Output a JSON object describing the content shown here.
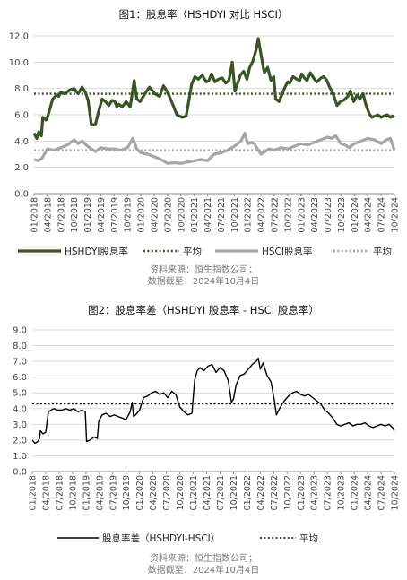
{
  "chart_data": [
    {
      "type": "line",
      "title": "图1：股息率（HSHDYI 对比 HSCI）",
      "ylim": [
        0,
        12
      ],
      "yticks": [
        "0.0",
        "2.0",
        "4.0",
        "6.0",
        "8.0",
        "10.0",
        "12.0"
      ],
      "xticks": [
        "01/2018",
        "04/2018",
        "07/2018",
        "10/2018",
        "01/2019",
        "04/2019",
        "07/2019",
        "10/2019",
        "01/2020",
        "04/2020",
        "07/2020",
        "10/2020",
        "01/2021",
        "04/2021",
        "07/2021",
        "10/2021",
        "01/2022",
        "04/2022",
        "07/2022",
        "10/2022",
        "01/2023",
        "04/2023",
        "07/2023",
        "10/2023",
        "01/2024",
        "04/2024",
        "07/2024",
        "10/2024"
      ],
      "legend": [
        "HSHDYI股息率",
        "平均",
        "HSCI股息率",
        "平均"
      ],
      "series": [
        {
          "name": "HSHDYI股息率",
          "color": "#375623",
          "x": [
            0,
            0.2,
            0.35,
            0.55,
            0.65,
            0.9,
            1.0,
            1.4,
            1.7,
            1.85,
            2.0,
            2.3,
            2.7,
            3.0,
            3.3,
            3.6,
            3.85,
            4.05,
            4.3,
            4.6,
            4.85,
            5.1,
            5.35,
            5.6,
            5.85,
            6.05,
            6.2,
            6.35,
            6.6,
            6.9,
            7.2,
            7.5,
            7.7,
            7.95,
            8.3,
            8.65,
            9.05,
            9.4,
            9.7,
            9.95,
            10.05,
            10.3,
            10.7,
            11.1,
            11.4,
            11.8,
            12.05,
            12.3,
            12.6,
            12.9,
            13.1,
            13.3,
            13.55,
            13.8,
            14.1,
            14.35,
            14.6,
            14.85,
            15.05,
            15.25,
            15.45,
            15.7,
            15.95,
            16.15,
            16.4,
            16.65,
            16.8,
            17.0,
            17.25,
            17.5,
            17.75,
            17.95,
            18.1,
            18.35,
            18.6,
            18.8,
            19.0,
            19.15,
            19.4,
            19.7,
            19.9,
            20.05,
            20.25,
            20.45,
            20.7,
            21.0,
            21.2,
            21.5,
            21.7,
            21.95,
            22.1,
            22.4,
            22.7,
            22.95,
            23.2,
            23.5,
            23.7,
            23.95,
            24.2,
            24.4,
            24.65,
            24.85,
            25.1,
            25.3,
            25.55,
            25.75,
            26.0,
            26.2,
            26.45,
            26.7,
            26.85,
            27.0
          ],
          "y": [
            4.6,
            4.2,
            4.7,
            4.4,
            5.8,
            5.6,
            5.8,
            7.2,
            7.5,
            7.4,
            7.7,
            7.6,
            7.9,
            8.0,
            7.6,
            8.1,
            7.7,
            7.1,
            5.2,
            5.3,
            6.3,
            7.2,
            7.0,
            6.7,
            7.1,
            7.0,
            6.6,
            6.8,
            6.6,
            7.0,
            6.6,
            8.6,
            7.2,
            7.0,
            7.6,
            8.1,
            7.6,
            7.4,
            8.2,
            7.8,
            7.6,
            7.0,
            6.0,
            5.8,
            5.9,
            8.3,
            8.9,
            8.7,
            9.0,
            8.5,
            8.6,
            9.1,
            8.5,
            8.7,
            8.8,
            8.4,
            8.6,
            10.0,
            7.8,
            8.4,
            9.0,
            9.3,
            8.7,
            9.6,
            10.1,
            11.0,
            11.8,
            10.6,
            9.2,
            9.6,
            8.6,
            8.9,
            7.2,
            7.0,
            7.6,
            8.1,
            8.5,
            8.4,
            8.9,
            8.7,
            8.6,
            9.1,
            8.8,
            8.6,
            9.2,
            8.7,
            8.5,
            8.8,
            8.9,
            8.6,
            8.2,
            7.6,
            6.7,
            7.0,
            7.1,
            7.4,
            7.8,
            7.0,
            7.5,
            7.2,
            7.6,
            6.8,
            6.1,
            5.8,
            5.9,
            6.0,
            5.8,
            5.9,
            6.0,
            5.8,
            5.9,
            5.8
          ]
        },
        {
          "name": "平均",
          "color": "#375623",
          "y": 7.6
        },
        {
          "name": "HSCI股息率",
          "color": "#a6a6a6",
          "x": [
            0,
            0.3,
            0.6,
            1.0,
            1.5,
            2.0,
            2.5,
            3.0,
            3.3,
            3.6,
            4.0,
            4.3,
            4.6,
            5.0,
            5.5,
            6.0,
            6.5,
            7.0,
            7.4,
            7.7,
            8.0,
            8.5,
            9.0,
            9.5,
            10.0,
            10.5,
            11.0,
            11.5,
            12.0,
            12.5,
            13.0,
            13.5,
            14.0,
            14.5,
            15.0,
            15.5,
            15.8,
            16.0,
            16.3,
            16.5,
            16.8,
            17.0,
            17.3,
            17.6,
            18.0,
            18.5,
            19.0,
            19.5,
            20.0,
            20.5,
            21.0,
            21.5,
            22.0,
            22.3,
            22.6,
            23.0,
            23.3,
            23.6,
            24.0,
            24.5,
            25.0,
            25.5,
            26.0,
            26.4,
            26.7,
            27.0
          ],
          "y": [
            2.6,
            2.5,
            2.7,
            3.4,
            3.3,
            3.5,
            3.7,
            4.1,
            3.8,
            4.0,
            3.6,
            3.4,
            3.2,
            3.5,
            3.4,
            3.4,
            3.3,
            3.5,
            4.2,
            3.4,
            3.1,
            3.0,
            2.8,
            2.6,
            2.3,
            2.35,
            2.3,
            2.4,
            2.5,
            2.6,
            2.5,
            3.0,
            3.1,
            3.3,
            3.6,
            4.0,
            4.6,
            3.8,
            3.9,
            3.8,
            3.3,
            3.0,
            3.2,
            3.4,
            3.3,
            3.5,
            3.4,
            3.6,
            3.8,
            3.7,
            3.9,
            4.1,
            4.3,
            4.2,
            4.4,
            3.8,
            3.7,
            3.5,
            3.8,
            4.0,
            4.2,
            4.1,
            3.8,
            4.1,
            4.2,
            3.3
          ]
        },
        {
          "name": "平均",
          "color": "#a6a6a6",
          "y": 3.3
        }
      ]
    },
    {
      "type": "line",
      "title": "图2：股息率差（HSHDYI 股息率 - HSCI 股息率）",
      "ylim": [
        0,
        9
      ],
      "yticks": [
        "0.0",
        "1.0",
        "2.0",
        "3.0",
        "4.0",
        "5.0",
        "6.0",
        "7.0",
        "8.0",
        "9.0"
      ],
      "xticks": [
        "01/2018",
        "04/2018",
        "07/2018",
        "10/2018",
        "01/2019",
        "04/2019",
        "07/2019",
        "10/2019",
        "01/2020",
        "04/2020",
        "07/2020",
        "10/2020",
        "01/2021",
        "04/2021",
        "07/2021",
        "10/2021",
        "01/2022",
        "04/2022",
        "07/2022",
        "10/2022",
        "01/2023",
        "04/2023",
        "07/2023",
        "10/2023",
        "01/2024",
        "04/2024",
        "07/2024",
        "10/2024"
      ],
      "legend": [
        "股息率差（HSHDYI-HSCI）",
        "平均"
      ],
      "series": [
        {
          "name": "股息率差（HSHDYI-HSCI）",
          "color": "#000000",
          "x": [
            0,
            0.2,
            0.4,
            0.55,
            0.6,
            0.8,
            1.0,
            1.2,
            1.4,
            1.6,
            1.9,
            2.2,
            2.5,
            2.8,
            3.1,
            3.4,
            3.7,
            3.95,
            4.05,
            4.3,
            4.6,
            4.85,
            4.95,
            5.2,
            5.5,
            5.8,
            6.1,
            6.4,
            6.7,
            7.0,
            7.3,
            7.45,
            7.55,
            7.7,
            8.0,
            8.3,
            8.6,
            8.9,
            9.2,
            9.5,
            9.8,
            10.1,
            10.4,
            10.7,
            11.0,
            11.3,
            11.6,
            11.9,
            12.1,
            12.3,
            12.5,
            12.8,
            13.1,
            13.4,
            13.7,
            14.0,
            14.3,
            14.6,
            14.85,
            15.0,
            15.2,
            15.5,
            15.8,
            16.1,
            16.4,
            16.7,
            16.85,
            17.0,
            17.2,
            17.5,
            17.8,
            18.05,
            18.2,
            18.5,
            18.8,
            19.1,
            19.4,
            19.7,
            20.0,
            20.3,
            20.6,
            20.9,
            21.2,
            21.5,
            21.8,
            22.1,
            22.4,
            22.7,
            23.0,
            23.3,
            23.6,
            23.9,
            24.2,
            24.5,
            24.8,
            25.1,
            25.4,
            25.7,
            26.0,
            26.3,
            26.6,
            26.85,
            27.0
          ],
          "y": [
            2.0,
            1.8,
            1.9,
            2.1,
            2.6,
            2.4,
            2.5,
            3.8,
            3.9,
            4.0,
            3.9,
            3.9,
            4.0,
            3.9,
            4.0,
            3.8,
            3.9,
            3.8,
            1.9,
            2.0,
            2.2,
            2.1,
            3.2,
            3.6,
            3.7,
            3.5,
            3.6,
            3.5,
            3.4,
            3.3,
            3.8,
            4.4,
            3.5,
            3.6,
            3.9,
            4.7,
            4.8,
            5.0,
            5.1,
            4.9,
            5.0,
            4.7,
            5.1,
            4.9,
            4.1,
            3.8,
            3.6,
            3.7,
            5.8,
            6.4,
            6.6,
            6.4,
            6.7,
            6.8,
            6.3,
            6.6,
            6.4,
            5.8,
            4.4,
            4.6,
            5.5,
            6.1,
            6.2,
            6.5,
            6.8,
            7.0,
            7.2,
            6.5,
            6.9,
            6.1,
            5.7,
            4.5,
            3.6,
            4.1,
            4.5,
            4.8,
            5.0,
            5.1,
            4.9,
            4.8,
            4.9,
            4.7,
            4.5,
            4.3,
            3.9,
            3.7,
            3.4,
            3.0,
            2.9,
            3.0,
            3.1,
            2.9,
            3.0,
            3.0,
            3.1,
            2.9,
            2.8,
            2.9,
            3.0,
            2.9,
            3.0,
            2.8,
            2.6
          ]
        },
        {
          "name": "平均",
          "color": "#000000",
          "y": 4.3
        }
      ]
    }
  ],
  "source": {
    "line1": "资料来源：恒生指数公司；",
    "line2": "数据截至：2024年10月4日"
  }
}
